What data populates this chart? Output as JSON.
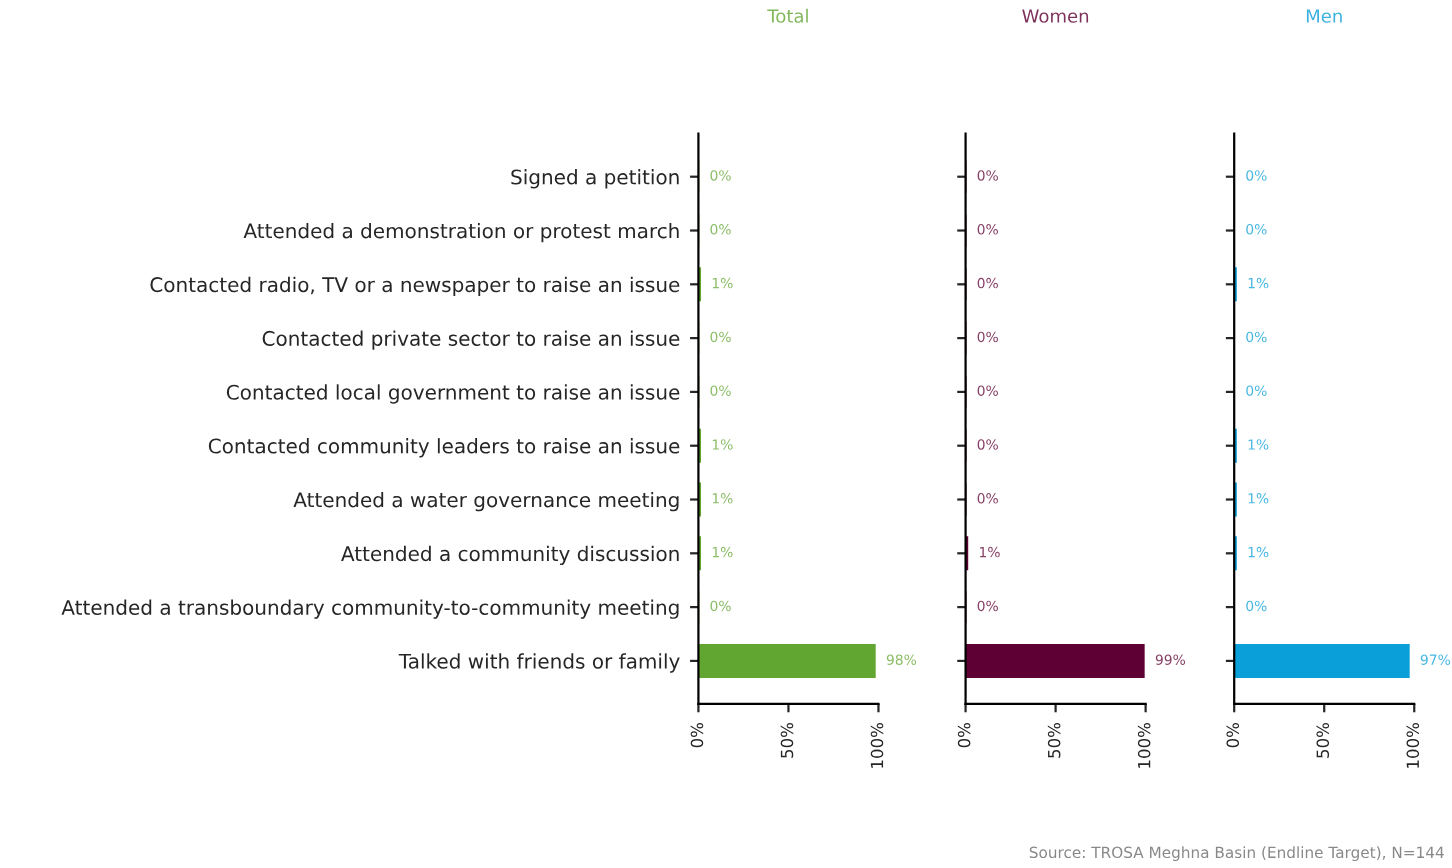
{
  "chart_data": [
    {
      "type": "bar",
      "orientation": "horizontal",
      "title": "Total",
      "categories": [
        "Signed a petition",
        "Attended a demonstration or protest march",
        "Contacted radio, TV or a newspaper to raise an issue",
        "Contacted private sector to raise an issue",
        "Contacted local government to raise an issue",
        "Contacted community leaders to raise an issue",
        "Attended a water governance meeting",
        "Attended a community discussion",
        "Attended a transboundary community-to-community meeting",
        "Talked with friends or family"
      ],
      "series": [
        {
          "color": "#62a632",
          "values": [
            0,
            0,
            1,
            0,
            0,
            1,
            1,
            1,
            0,
            98
          ],
          "value_labels": [
            "0%",
            "0%",
            "1%",
            "0%",
            "0%",
            "1%",
            "1%",
            "1%",
            "0%",
            "98%"
          ]
        }
      ],
      "xlim": [
        0,
        100
      ],
      "xticks": [
        {
          "value": 0,
          "label": "0%"
        },
        {
          "value": 50,
          "label": "50%"
        },
        {
          "value": 100,
          "label": "100%"
        }
      ],
      "grid": false,
      "legend": false
    },
    {
      "type": "bar",
      "orientation": "horizontal",
      "title": "Women",
      "categories": [
        null,
        null,
        null,
        null,
        null,
        null,
        null,
        null,
        null,
        null
      ],
      "series": [
        {
          "color": "#5e0033",
          "values": [
            0,
            0,
            0,
            0,
            0,
            0,
            0,
            1,
            0,
            99
          ],
          "value_labels": [
            "0%",
            "0%",
            "0%",
            "0%",
            "0%",
            "0%",
            "0%",
            "1%",
            "0%",
            "99%"
          ]
        }
      ],
      "xlim": [
        0,
        100
      ],
      "xticks": [
        {
          "value": 0,
          "label": "0%"
        },
        {
          "value": 50,
          "label": "50%"
        },
        {
          "value": 100,
          "label": "100%"
        }
      ],
      "tick_labels": "x",
      "grid": false,
      "legend": false
    },
    {
      "type": "bar",
      "orientation": "horizontal",
      "title": "Men",
      "categories": [
        null,
        null,
        null,
        null,
        null,
        null,
        null,
        null,
        null,
        null
      ],
      "series": [
        {
          "color": "#0a9fd8",
          "values": [
            0,
            0,
            1,
            0,
            0,
            1,
            1,
            1,
            0,
            97
          ],
          "value_labels": [
            "0%",
            "0%",
            "1%",
            "0%",
            "0%",
            "1%",
            "1%",
            "1%",
            "0%",
            "97%"
          ]
        }
      ],
      "xlim": [
        0,
        100
      ],
      "xticks": [
        {
          "value": 0,
          "label": "0%"
        },
        {
          "value": 50,
          "label": "50%"
        },
        {
          "value": 100,
          "label": "100%"
        }
      ],
      "tick_labels": "x",
      "grid": false,
      "legend": false,
      "annotations": [
        "Source: TROSA Meghna Basin (Endline Target), N=144"
      ]
    }
  ]
}
